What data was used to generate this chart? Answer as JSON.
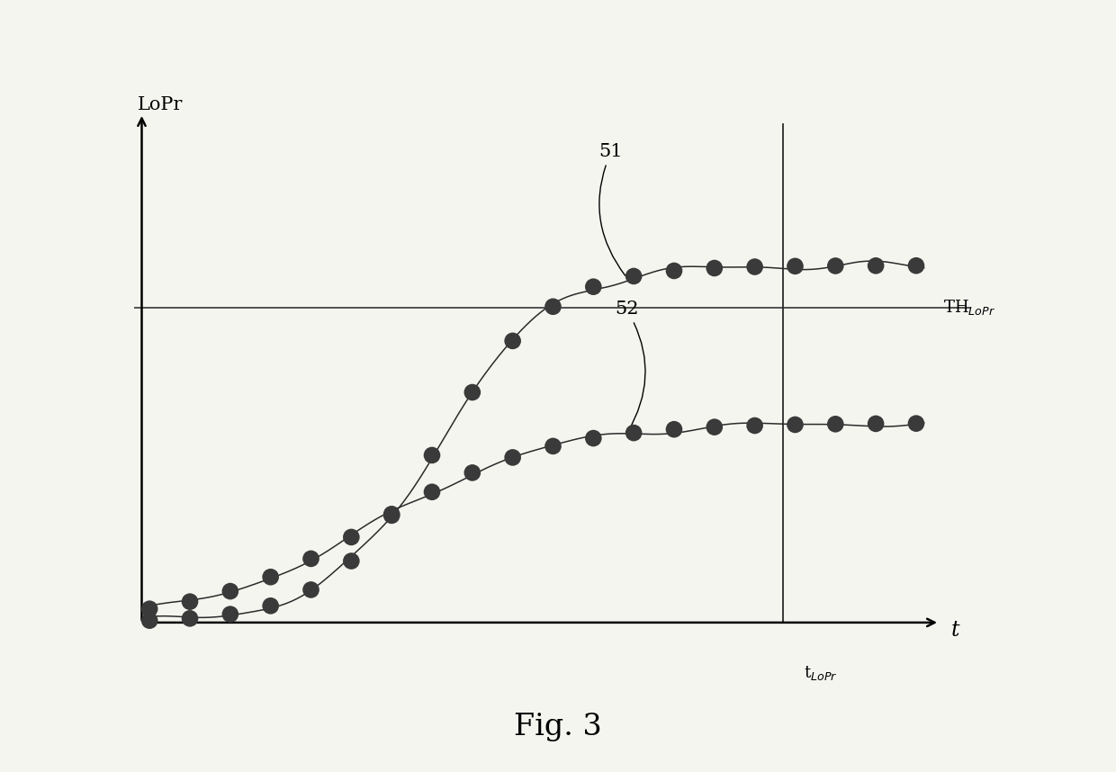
{
  "title": "Fig. 3",
  "ylabel": "LoPr",
  "xlabel": "t",
  "th_label": "TH$_{LoPr}$",
  "t_lopr_label": "t$_{LoPr}$",
  "curve51_label": "51",
  "curve52_label": "52",
  "th_lopr": 0.6,
  "t_lopr": 0.82,
  "bg_color": "#f5f5f0",
  "curve_color": "#2a2a2a",
  "dot_facecolor": "#3a3a3a",
  "dot_size": 180,
  "curve51_plateau": 0.68,
  "curve52_plateau": 0.38,
  "curve51_inflect": 0.38,
  "curve52_inflect": 0.3,
  "curve51_steepness": 14,
  "curve52_steepness": 9
}
